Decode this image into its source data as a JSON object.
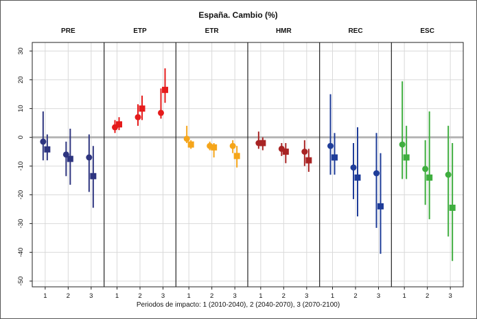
{
  "chart_data": {
    "type": "scatter",
    "title": "España. Cambio (%)",
    "xlabel": "Periodos de impacto: 1 (2010-2040), 2 (2040-2070), 3 (2070-2100)",
    "ylabel": "",
    "ylim": [
      -52,
      33
    ],
    "yticks": [
      30,
      20,
      10,
      0,
      -10,
      -20,
      -30,
      -40,
      -50
    ],
    "x_categories": [
      "1",
      "2",
      "3"
    ],
    "grid": true,
    "reference_line": 0,
    "marker_shapes": [
      "circle",
      "square"
    ],
    "panels": [
      {
        "name": "PRE",
        "color": "#2e3580",
        "series": [
          {
            "marker": "circle",
            "values": [
              -1.5,
              -6,
              -7
            ],
            "low": [
              -8,
              -13.5,
              -19
            ],
            "high": [
              9,
              -1.5,
              1
            ]
          },
          {
            "marker": "square",
            "values": [
              -4.2,
              -7.5,
              -13.5
            ],
            "low": [
              -8,
              -16.5,
              -24.5
            ],
            "high": [
              1,
              3,
              -3
            ]
          }
        ]
      },
      {
        "name": "ETP",
        "color": "#e51b1b",
        "series": [
          {
            "marker": "circle",
            "values": [
              3.5,
              7,
              8.5
            ],
            "low": [
              1.5,
              4,
              6.5
            ],
            "high": [
              6,
              11.5,
              17
            ]
          },
          {
            "marker": "square",
            "values": [
              4.5,
              10,
              16.5
            ],
            "low": [
              2.5,
              6,
              12
            ],
            "high": [
              7,
              14.5,
              24
            ]
          }
        ]
      },
      {
        "name": "ETR",
        "color": "#f5a51a",
        "series": [
          {
            "marker": "circle",
            "values": [
              -0.5,
              -3,
              -3
            ],
            "low": [
              -2,
              -4.5,
              -5.5
            ],
            "high": [
              4,
              -1.5,
              -1
            ]
          },
          {
            "marker": "square",
            "values": [
              -2.5,
              -3.5,
              -6.5
            ],
            "low": [
              -4,
              -7,
              -10.5
            ],
            "high": [
              -1,
              -2,
              -3
            ]
          }
        ]
      },
      {
        "name": "HMR",
        "color": "#a82424",
        "series": [
          {
            "marker": "circle",
            "values": [
              -2,
              -4,
              -5
            ],
            "low": [
              -4,
              -6.5,
              -10
            ],
            "high": [
              2,
              -2,
              -1
            ]
          },
          {
            "marker": "square",
            "values": [
              -2,
              -5,
              -8
            ],
            "low": [
              -4.5,
              -9,
              -12
            ],
            "high": [
              0,
              -2,
              -4
            ]
          }
        ]
      },
      {
        "name": "REC",
        "color": "#1f3d99",
        "series": [
          {
            "marker": "circle",
            "values": [
              -3,
              -10.5,
              -12.5
            ],
            "low": [
              -13,
              -21.5,
              -31.5
            ],
            "high": [
              15,
              -2,
              1.5
            ]
          },
          {
            "marker": "square",
            "values": [
              -7,
              -14,
              -24
            ],
            "low": [
              -13,
              -27.5,
              -40.5
            ],
            "high": [
              1.5,
              3.5,
              -5.5
            ]
          }
        ]
      },
      {
        "name": "ESC",
        "color": "#3fae3f",
        "series": [
          {
            "marker": "circle",
            "values": [
              -2.5,
              -11,
              -13
            ],
            "low": [
              -14.5,
              -23.5,
              -34.5
            ],
            "high": [
              19.5,
              -1,
              4
            ]
          },
          {
            "marker": "square",
            "values": [
              -7,
              -14,
              -24.5
            ],
            "low": [
              -14.5,
              -28.5,
              -43
            ],
            "high": [
              4,
              9,
              -2
            ]
          }
        ]
      }
    ]
  }
}
